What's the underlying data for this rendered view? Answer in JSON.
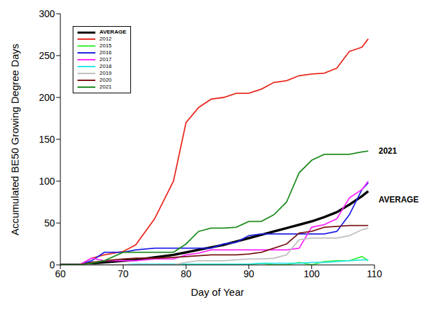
{
  "chart_data": {
    "type": "line",
    "x_label": "Day of Year",
    "y_label": "Accumulated BE50 Growing Degree Days",
    "x": [
      60,
      63,
      65,
      67,
      70,
      72,
      75,
      78,
      80,
      82,
      84,
      86,
      88,
      90,
      92,
      94,
      96,
      98,
      100,
      102,
      104,
      106,
      108,
      109
    ],
    "xlim": [
      60,
      110
    ],
    "xticks": [
      60,
      70,
      80,
      90,
      100,
      110
    ],
    "ylim": [
      0,
      300
    ],
    "yticks": [
      0,
      50,
      100,
      150,
      200,
      250,
      300
    ],
    "grid": false,
    "legend": "upper left",
    "series": [
      {
        "name": "AVERAGE",
        "color": "#000000",
        "values": [
          0,
          0,
          2,
          3,
          5,
          6,
          9,
          12,
          15,
          18,
          21,
          24,
          28,
          32,
          36,
          40,
          44,
          48,
          52,
          57,
          63,
          72,
          82,
          88
        ]
      },
      {
        "name": "2012",
        "color": "#e8281e",
        "values": [
          0,
          0,
          8,
          12,
          16,
          24,
          55,
          100,
          170,
          188,
          198,
          200,
          205,
          205,
          210,
          218,
          220,
          226,
          228,
          229,
          235,
          255,
          260,
          270
        ]
      },
      {
        "name": "2015",
        "color": "#3cf03c",
        "values": [
          0,
          0,
          0,
          0,
          0,
          0,
          0,
          0,
          0,
          0,
          0,
          0,
          0,
          0,
          2,
          0,
          0,
          3,
          0,
          4,
          5,
          5,
          10,
          5
        ]
      },
      {
        "name": "2016",
        "color": "#1e1ee6",
        "values": [
          0,
          0,
          5,
          15,
          15,
          18,
          20,
          20,
          20,
          20,
          20,
          25,
          27,
          35,
          37,
          37,
          37,
          37,
          37,
          37,
          40,
          60,
          90,
          98
        ]
      },
      {
        "name": "2017",
        "color": "#ff28ff",
        "values": [
          0,
          0,
          8,
          5,
          5,
          5,
          7,
          7,
          12,
          14,
          18,
          18,
          18,
          18,
          18,
          18,
          18,
          20,
          45,
          48,
          55,
          80,
          90,
          100
        ]
      },
      {
        "name": "2018",
        "color": "#28e6e6",
        "values": [
          0,
          0,
          0,
          0,
          0,
          1,
          1,
          1,
          1,
          1,
          1,
          1,
          1,
          1,
          2,
          2,
          2,
          2,
          3,
          3,
          4,
          5,
          6,
          6
        ]
      },
      {
        "name": "2019",
        "color": "#c0c0c0",
        "values": [
          0,
          0,
          0,
          0,
          0,
          0,
          0,
          0,
          3,
          5,
          5,
          5,
          6,
          7,
          7,
          8,
          12,
          30,
          32,
          32,
          32,
          35,
          42,
          44
        ]
      },
      {
        "name": "2020",
        "color": "#7a1414",
        "values": [
          0,
          0,
          3,
          5,
          7,
          8,
          8,
          9,
          10,
          11,
          12,
          12,
          12,
          13,
          15,
          20,
          25,
          38,
          40,
          45,
          46,
          47,
          47,
          47
        ]
      },
      {
        "name": "2021",
        "color": "#1e8c1e",
        "values": [
          0,
          0,
          2,
          5,
          15,
          15,
          15,
          15,
          25,
          40,
          44,
          44,
          45,
          52,
          52,
          60,
          75,
          110,
          125,
          132,
          132,
          132,
          135,
          136
        ]
      }
    ],
    "annotations": [
      {
        "text": "2021",
        "x": 110,
        "y": 136
      },
      {
        "text": "AVERAGE",
        "x": 110,
        "y": 78
      }
    ]
  }
}
